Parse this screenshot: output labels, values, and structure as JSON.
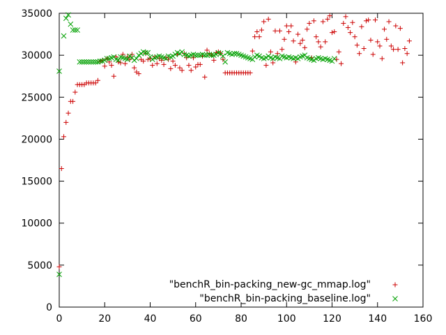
{
  "chart_data": {
    "type": "scatter",
    "title": "",
    "xlabel": "",
    "ylabel": "",
    "xlim": [
      0,
      160
    ],
    "ylim": [
      0,
      35000
    ],
    "x_ticks": [
      "0",
      "20",
      "40",
      "60",
      "80",
      "100",
      "120",
      "140",
      "160"
    ],
    "y_ticks": [
      "0",
      "5000",
      "10000",
      "15000",
      "20000",
      "25000",
      "30000",
      "35000"
    ],
    "grid": false,
    "legend_position": "bottom-right",
    "series": [
      {
        "name": "\"benchR_bin-packing_new-gc_mmap.log\"",
        "marker": "plus",
        "color": "#cc0000",
        "points": [
          [
            0,
            4800
          ],
          [
            1,
            16500
          ],
          [
            2,
            20300
          ],
          [
            3,
            22000
          ],
          [
            4,
            23100
          ],
          [
            5,
            24500
          ],
          [
            6,
            24500
          ],
          [
            7,
            25600
          ],
          [
            8,
            26500
          ],
          [
            9,
            26500
          ],
          [
            10,
            26500
          ],
          [
            11,
            26500
          ],
          [
            12,
            26700
          ],
          [
            13,
            26700
          ],
          [
            14,
            26700
          ],
          [
            15,
            26700
          ],
          [
            16,
            26700
          ],
          [
            17,
            27000
          ],
          [
            18,
            29300
          ],
          [
            19,
            29400
          ],
          [
            20,
            28700
          ],
          [
            21,
            29600
          ],
          [
            22,
            29200
          ],
          [
            23,
            28800
          ],
          [
            24,
            27500
          ],
          [
            25,
            29800
          ],
          [
            26,
            29200
          ],
          [
            27,
            29100
          ],
          [
            28,
            30100
          ],
          [
            29,
            29000
          ],
          [
            30,
            29800
          ],
          [
            31,
            29500
          ],
          [
            32,
            30100
          ],
          [
            33,
            28500
          ],
          [
            34,
            28000
          ],
          [
            35,
            27800
          ],
          [
            36,
            29500
          ],
          [
            37,
            29300
          ],
          [
            38,
            30200
          ],
          [
            39,
            29500
          ],
          [
            40,
            29600
          ],
          [
            41,
            28800
          ],
          [
            42,
            29800
          ],
          [
            43,
            29000
          ],
          [
            44,
            29600
          ],
          [
            45,
            29400
          ],
          [
            46,
            28900
          ],
          [
            47,
            29700
          ],
          [
            48,
            29500
          ],
          [
            49,
            28400
          ],
          [
            50,
            29300
          ],
          [
            51,
            28800
          ],
          [
            52,
            30100
          ],
          [
            53,
            28500
          ],
          [
            54,
            28200
          ],
          [
            55,
            30200
          ],
          [
            56,
            29700
          ],
          [
            57,
            28800
          ],
          [
            58,
            28200
          ],
          [
            59,
            29700
          ],
          [
            60,
            28600
          ],
          [
            61,
            28900
          ],
          [
            62,
            28900
          ],
          [
            63,
            29900
          ],
          [
            64,
            27400
          ],
          [
            65,
            30600
          ],
          [
            66,
            30200
          ],
          [
            67,
            30000
          ],
          [
            68,
            29400
          ],
          [
            69,
            30300
          ],
          [
            70,
            30400
          ],
          [
            71,
            30200
          ],
          [
            72,
            29500
          ],
          [
            73,
            27900
          ],
          [
            74,
            27900
          ],
          [
            75,
            27900
          ],
          [
            76,
            27900
          ],
          [
            77,
            27900
          ],
          [
            78,
            27900
          ],
          [
            79,
            27900
          ],
          [
            80,
            27900
          ],
          [
            81,
            27900
          ],
          [
            82,
            27900
          ],
          [
            83,
            27900
          ],
          [
            84,
            27900
          ],
          [
            85,
            30500
          ],
          [
            86,
            32200
          ],
          [
            87,
            32800
          ],
          [
            88,
            32200
          ],
          [
            89,
            33000
          ],
          [
            90,
            34000
          ],
          [
            91,
            28800
          ],
          [
            92,
            34300
          ],
          [
            93,
            30400
          ],
          [
            94,
            29100
          ],
          [
            95,
            32900
          ],
          [
            96,
            30200
          ],
          [
            97,
            32900
          ],
          [
            98,
            30700
          ],
          [
            99,
            31900
          ],
          [
            100,
            33500
          ],
          [
            101,
            32800
          ],
          [
            102,
            33500
          ],
          [
            103,
            31700
          ],
          [
            104,
            29200
          ],
          [
            105,
            32500
          ],
          [
            106,
            31400
          ],
          [
            107,
            31800
          ],
          [
            108,
            30900
          ],
          [
            109,
            33100
          ],
          [
            110,
            33800
          ],
          [
            111,
            29700
          ],
          [
            112,
            34100
          ],
          [
            113,
            32200
          ],
          [
            114,
            31600
          ],
          [
            115,
            31000
          ],
          [
            116,
            34000
          ],
          [
            117,
            31600
          ],
          [
            118,
            34300
          ],
          [
            119,
            34700
          ],
          [
            120,
            32700
          ],
          [
            121,
            32800
          ],
          [
            122,
            29500
          ],
          [
            123,
            30400
          ],
          [
            124,
            29000
          ],
          [
            125,
            33800
          ],
          [
            126,
            34600
          ],
          [
            127,
            33300
          ],
          [
            128,
            32700
          ],
          [
            129,
            33900
          ],
          [
            130,
            32200
          ],
          [
            131,
            31200
          ],
          [
            132,
            30200
          ],
          [
            133,
            33400
          ],
          [
            134,
            30800
          ],
          [
            135,
            34100
          ],
          [
            136,
            34200
          ],
          [
            137,
            31800
          ],
          [
            138,
            30100
          ],
          [
            139,
            34200
          ],
          [
            140,
            31600
          ],
          [
            141,
            31100
          ],
          [
            142,
            29600
          ],
          [
            143,
            33100
          ],
          [
            144,
            31900
          ],
          [
            145,
            34000
          ],
          [
            146,
            31100
          ],
          [
            147,
            30700
          ],
          [
            148,
            33500
          ],
          [
            149,
            30700
          ],
          [
            150,
            33200
          ],
          [
            151,
            29100
          ],
          [
            152,
            30800
          ],
          [
            153,
            30200
          ],
          [
            154,
            31700
          ]
        ]
      },
      {
        "name": "\"benchR_bin-packing_baseline.log\"",
        "marker": "cross",
        "color": "#00a000",
        "points": [
          [
            0,
            3900
          ],
          [
            0,
            28100
          ],
          [
            2,
            32300
          ],
          [
            3,
            34400
          ],
          [
            4,
            34800
          ],
          [
            5,
            33700
          ],
          [
            6,
            33000
          ],
          [
            7,
            33000
          ],
          [
            8,
            33000
          ],
          [
            9,
            29200
          ],
          [
            10,
            29200
          ],
          [
            11,
            29200
          ],
          [
            12,
            29200
          ],
          [
            13,
            29200
          ],
          [
            14,
            29200
          ],
          [
            15,
            29200
          ],
          [
            16,
            29200
          ],
          [
            17,
            29200
          ],
          [
            18,
            29300
          ],
          [
            19,
            29300
          ],
          [
            20,
            29400
          ],
          [
            21,
            29600
          ],
          [
            22,
            29600
          ],
          [
            23,
            29700
          ],
          [
            24,
            29800
          ],
          [
            25,
            29500
          ],
          [
            26,
            29400
          ],
          [
            27,
            29800
          ],
          [
            28,
            29700
          ],
          [
            29,
            29600
          ],
          [
            30,
            29500
          ],
          [
            31,
            29900
          ],
          [
            32,
            29700
          ],
          [
            33,
            29400
          ],
          [
            34,
            29600
          ],
          [
            35,
            30000
          ],
          [
            36,
            30200
          ],
          [
            37,
            30400
          ],
          [
            38,
            30300
          ],
          [
            39,
            30300
          ],
          [
            40,
            29800
          ],
          [
            41,
            29500
          ],
          [
            42,
            29700
          ],
          [
            43,
            29800
          ],
          [
            44,
            29900
          ],
          [
            45,
            29800
          ],
          [
            46,
            29700
          ],
          [
            47,
            29600
          ],
          [
            48,
            29900
          ],
          [
            49,
            29800
          ],
          [
            50,
            29900
          ],
          [
            51,
            30100
          ],
          [
            52,
            30300
          ],
          [
            53,
            30200
          ],
          [
            54,
            30400
          ],
          [
            55,
            30100
          ],
          [
            56,
            30000
          ],
          [
            57,
            29900
          ],
          [
            58,
            30000
          ],
          [
            59,
            30100
          ],
          [
            60,
            30000
          ],
          [
            61,
            30000
          ],
          [
            62,
            30000
          ],
          [
            63,
            30100
          ],
          [
            64,
            30000
          ],
          [
            65,
            30000
          ],
          [
            66,
            30100
          ],
          [
            67,
            30000
          ],
          [
            68,
            30000
          ],
          [
            69,
            30100
          ],
          [
            70,
            30300
          ],
          [
            71,
            30200
          ],
          [
            72,
            29900
          ],
          [
            73,
            29200
          ],
          [
            74,
            30300
          ],
          [
            75,
            30200
          ],
          [
            76,
            30100
          ],
          [
            77,
            30200
          ],
          [
            78,
            30200
          ],
          [
            79,
            30100
          ],
          [
            80,
            30000
          ],
          [
            81,
            29900
          ],
          [
            82,
            29800
          ],
          [
            83,
            29700
          ],
          [
            84,
            29600
          ],
          [
            85,
            29500
          ],
          [
            86,
            29800
          ],
          [
            87,
            30000
          ],
          [
            88,
            29900
          ],
          [
            89,
            29700
          ],
          [
            90,
            29600
          ],
          [
            91,
            29700
          ],
          [
            92,
            29900
          ],
          [
            93,
            29700
          ],
          [
            94,
            29600
          ],
          [
            95,
            29800
          ],
          [
            96,
            29700
          ],
          [
            97,
            29600
          ],
          [
            98,
            29900
          ],
          [
            99,
            29800
          ],
          [
            100,
            29700
          ],
          [
            101,
            29800
          ],
          [
            102,
            29700
          ],
          [
            103,
            29600
          ],
          [
            104,
            29700
          ],
          [
            105,
            29600
          ],
          [
            106,
            29800
          ],
          [
            107,
            29900
          ],
          [
            108,
            30000
          ],
          [
            109,
            29700
          ],
          [
            110,
            29600
          ],
          [
            111,
            29500
          ],
          [
            112,
            29400
          ],
          [
            113,
            29600
          ],
          [
            114,
            29700
          ],
          [
            115,
            29600
          ],
          [
            116,
            29500
          ],
          [
            117,
            29600
          ],
          [
            118,
            29500
          ],
          [
            119,
            29400
          ],
          [
            120,
            29300
          ],
          [
            121,
            29600
          ]
        ]
      }
    ]
  }
}
